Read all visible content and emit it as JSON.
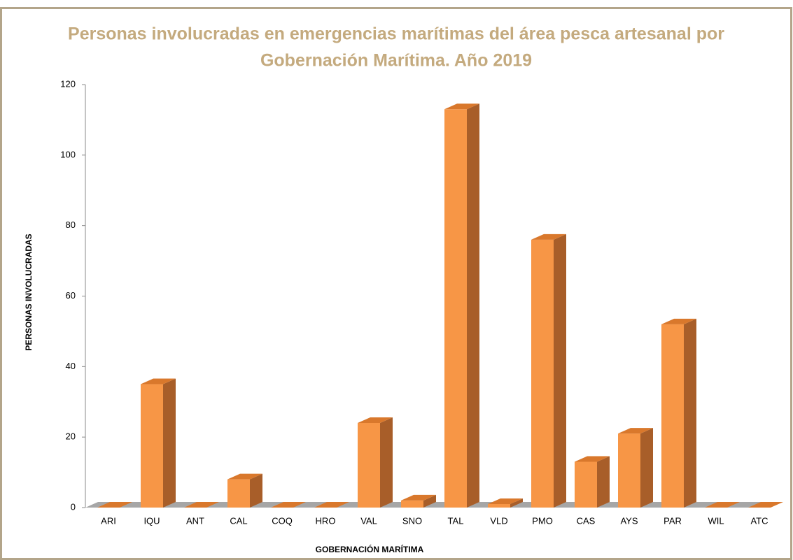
{
  "chart_data": {
    "type": "bar3d",
    "title": [
      "Personas involucradas en emergencias marítimas del área pesca artesanal por",
      "Gobernación Marítima. Año 2019"
    ],
    "y_label": "PERSONAS INVOLUCRADAS",
    "x_label": "GOBERNACIÓN MARÍTIMA",
    "categories": [
      "ARI",
      "IQU",
      "ANT",
      "CAL",
      "COQ",
      "HRO",
      "VAL",
      "SNO",
      "TAL",
      "VLD",
      "PMO",
      "CAS",
      "AYS",
      "PAR",
      "WIL",
      "ATC"
    ],
    "values": [
      0,
      35,
      0,
      8,
      0,
      0,
      24,
      2,
      113,
      1,
      76,
      13,
      21,
      52,
      0,
      0
    ],
    "color": "#f79646",
    "ylim": [
      0,
      120
    ],
    "yticks": [
      0,
      20,
      40,
      60,
      80,
      100,
      120
    ]
  }
}
